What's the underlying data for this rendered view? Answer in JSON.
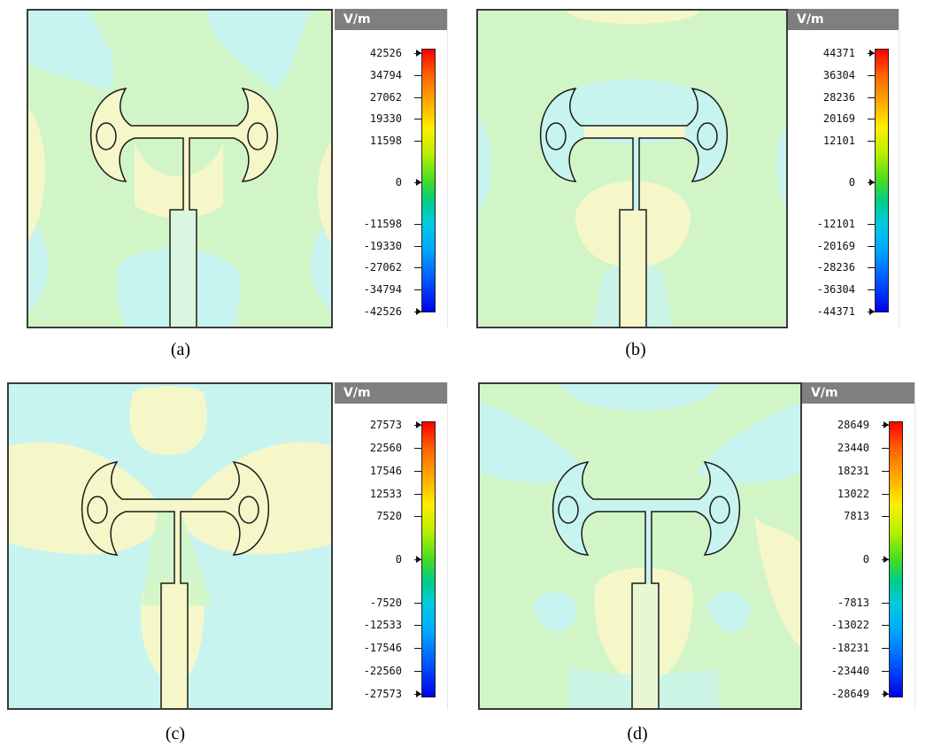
{
  "panels": [
    {
      "caption": "(a)",
      "unit": "V/m",
      "ticks": [
        "42526",
        "34794",
        "27062",
        "19330",
        "11598",
        "0",
        "-11598",
        "-19330",
        "-27062",
        "-34794",
        "-42526"
      ]
    },
    {
      "caption": "(b)",
      "unit": "V/m",
      "ticks": [
        "44371",
        "36304",
        "28236",
        "20169",
        "12101",
        "0",
        "-12101",
        "-20169",
        "-28236",
        "-36304",
        "-44371"
      ]
    },
    {
      "caption": "(c)",
      "unit": "V/m",
      "ticks": [
        "27573",
        "22560",
        "17546",
        "12533",
        "7520",
        "0",
        "-7520",
        "-12533",
        "-17546",
        "-22560",
        "-27573"
      ]
    },
    {
      "caption": "(d)",
      "unit": "V/m",
      "ticks": [
        "28649",
        "23440",
        "18231",
        "13022",
        "7813",
        "0",
        "-7813",
        "-13022",
        "-18231",
        "-23440",
        "-28649"
      ]
    }
  ],
  "colors": {
    "background_field": "#d2f5c8",
    "cyan_field": "#c8f4f0",
    "yellow_field": "#f6f7c8",
    "antenna_outline": "#1a1a1a",
    "header": "#7f7f7f"
  }
}
